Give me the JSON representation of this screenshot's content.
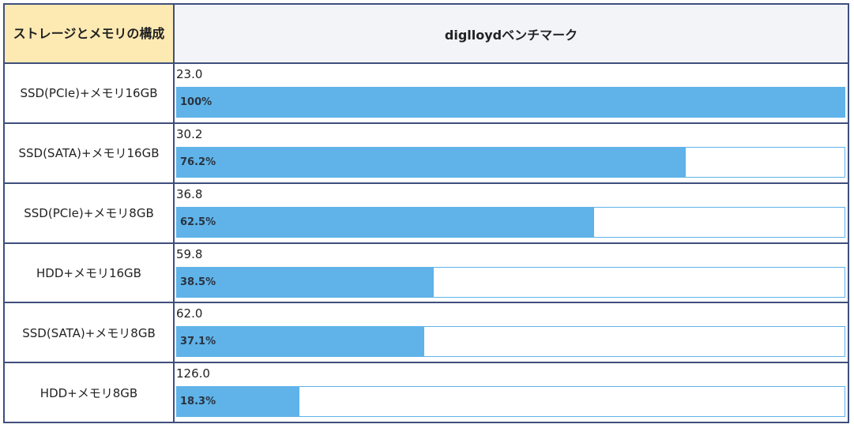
{
  "header": {
    "config_label": "ストレージとメモリの構成",
    "benchmark_label": "diglloydベンチマーク"
  },
  "colors": {
    "header_left_bg": "#fdeab3",
    "header_right_bg": "#f2f4f8",
    "bar": "#5fb3e9",
    "border": "#3f4f7c"
  },
  "rows": [
    {
      "config": "SSD(PCIe)+メモリ16GB",
      "value": "23.0",
      "percent": "100%",
      "fill": 100
    },
    {
      "config": "SSD(SATA)+メモリ16GB",
      "value": "30.2",
      "percent": "76.2%",
      "fill": 76.2
    },
    {
      "config": "SSD(PCIe)+メモリ8GB",
      "value": "36.8",
      "percent": "62.5%",
      "fill": 62.5
    },
    {
      "config": "HDD+メモリ16GB",
      "value": "59.8",
      "percent": "38.5%",
      "fill": 38.5
    },
    {
      "config": "SSD(SATA)+メモリ8GB",
      "value": "62.0",
      "percent": "37.1%",
      "fill": 37.1
    },
    {
      "config": "HDD+メモリ8GB",
      "value": "126.0",
      "percent": "18.3%",
      "fill": 18.3
    }
  ]
}
